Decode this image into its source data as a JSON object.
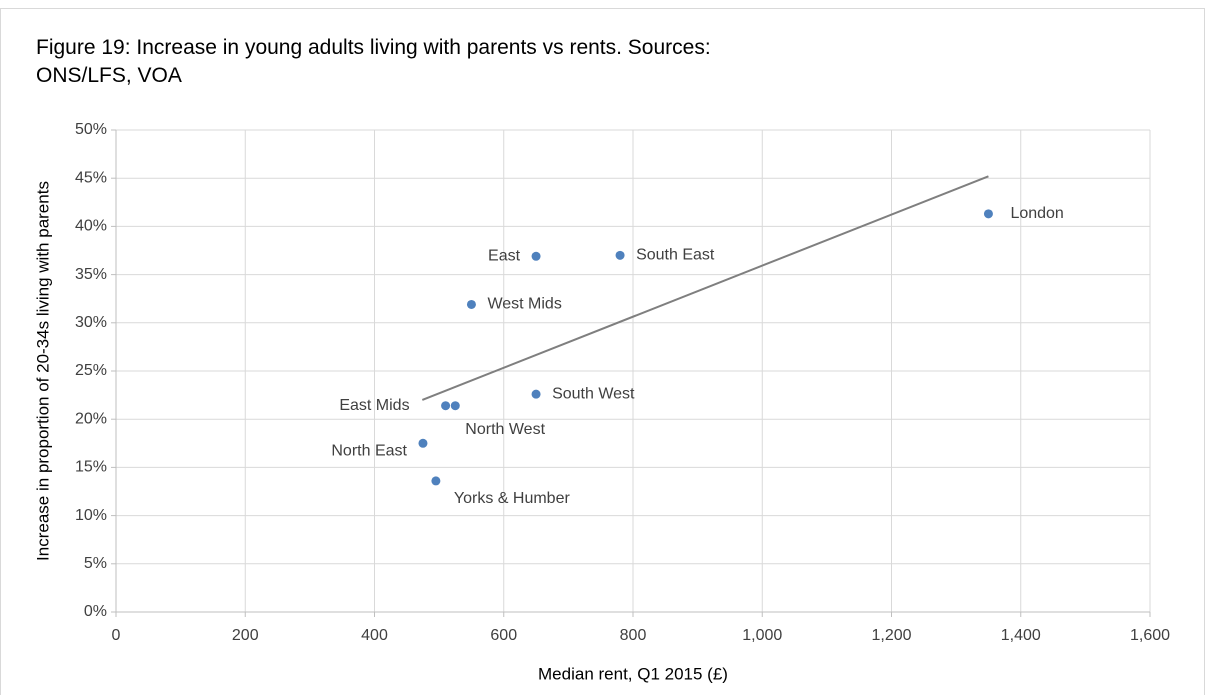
{
  "chart_data": {
    "type": "scatter",
    "title": [
      "Figure 19: Increase in young adults living with parents vs rents. Sources:",
      "ONS/LFS, VOA"
    ],
    "x_label": "Median rent, Q1 2015 (£)",
    "y_label": "Increase in proportion of 20-34s living with parents",
    "color": "#4f81bd",
    "points": [
      {
        "label": "London",
        "x": 1350,
        "y": 41.3
      },
      {
        "label": "South East",
        "x": 780,
        "y": 37.0
      },
      {
        "label": "East",
        "x": 650,
        "y": 36.9
      },
      {
        "label": "West Mids",
        "x": 550,
        "y": 31.9
      },
      {
        "label": "South West",
        "x": 650,
        "y": 22.6
      },
      {
        "label": "East Mids",
        "x": 510,
        "y": 21.4
      },
      {
        "label": "North West",
        "x": 525,
        "y": 21.4
      },
      {
        "label": "North East",
        "x": 475,
        "y": 17.5
      },
      {
        "label": "Yorks & Humber",
        "x": 495,
        "y": 13.6
      }
    ],
    "trendline": {
      "x": [
        474,
        1350
      ],
      "y": [
        22.0,
        45.2
      ],
      "color": "#7f7f7f"
    },
    "xlim": [
      0,
      1600
    ],
    "xticks": [
      0,
      200,
      400,
      600,
      800,
      {
        "value": 1000,
        "label": "1,000"
      },
      {
        "value": 1200,
        "label": "1,200"
      },
      {
        "value": 1400,
        "label": "1,400"
      },
      {
        "value": 1600,
        "label": "1,600"
      }
    ],
    "ylim": [
      0,
      50
    ],
    "yticks": [
      {
        "value": 0,
        "label": "0%"
      },
      {
        "value": 5,
        "label": "5%"
      },
      {
        "value": 10,
        "label": "10%"
      },
      {
        "value": 15,
        "label": "15%"
      },
      {
        "value": 20,
        "label": "20%"
      },
      {
        "value": 25,
        "label": "25%"
      },
      {
        "value": 30,
        "label": "30%"
      },
      {
        "value": 35,
        "label": "35%"
      },
      {
        "value": 40,
        "label": "40%"
      },
      {
        "value": 45,
        "label": "45%"
      },
      {
        "value": 50,
        "label": "50%"
      }
    ],
    "grid": true
  }
}
